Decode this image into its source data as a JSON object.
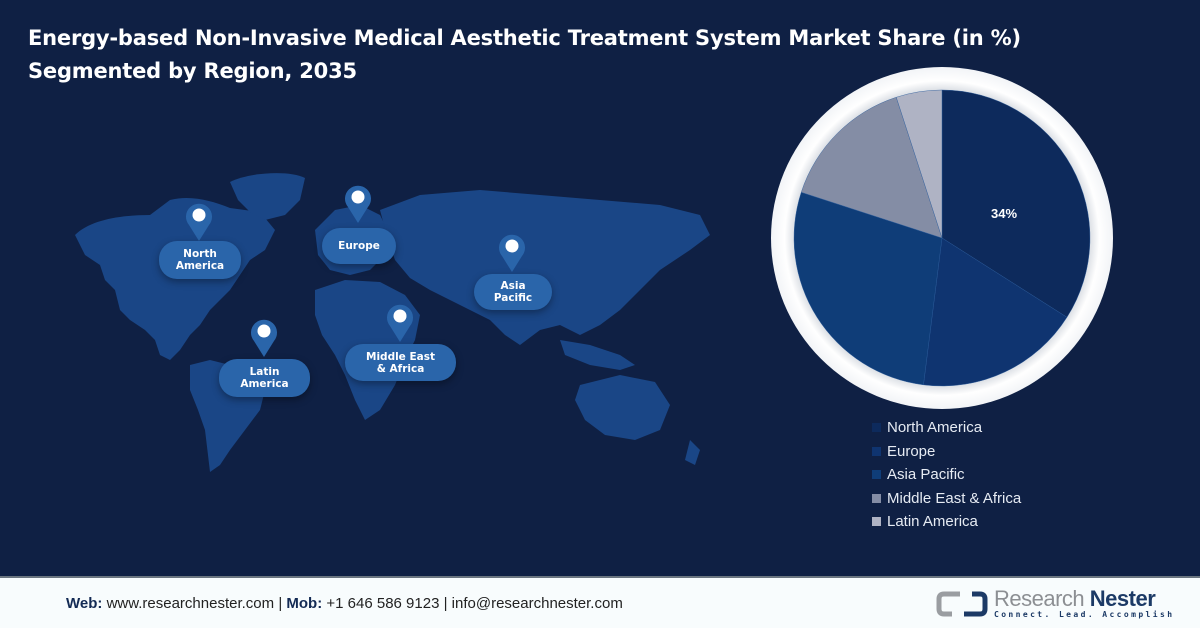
{
  "header": {
    "title_line1": "Energy-based Non-Invasive Medical Aesthetic Treatment System Market Share (in %)",
    "title_line2": "Segmented by Region, 2035"
  },
  "map": {
    "regions": [
      {
        "label_l1": "North",
        "label_l2": "America"
      },
      {
        "label_l1": "Europe",
        "label_l2": ""
      },
      {
        "label_l1": "Asia",
        "label_l2": "Pacific"
      },
      {
        "label_l1": "Latin",
        "label_l2": "America"
      },
      {
        "label_l1": "Middle East",
        "label_l2": "& Africa"
      }
    ],
    "pin_icon": "map-pin-icon"
  },
  "chart_data": {
    "type": "pie",
    "title": "Energy-based Non-Invasive Medical Aesthetic Treatment System Market Share (in %) Segmented by Region, 2035",
    "categories": [
      "North America",
      "Europe",
      "Asia Pacific",
      "Middle East & Africa",
      "Latin America"
    ],
    "values": [
      34,
      18,
      28,
      15,
      5
    ],
    "colors": [
      "#0d2a5c",
      "#0f3470",
      "#0f3d78",
      "#848da5",
      "#afb3c4"
    ],
    "data_labels": [
      "34%",
      "",
      "",
      "",
      ""
    ],
    "legend_position": "bottom-right",
    "start_angle": "12 o'clock, clockwise"
  },
  "legend": {
    "items": [
      {
        "label": "North America",
        "color": "#0d2a5c"
      },
      {
        "label": "Europe",
        "color": "#0f3470"
      },
      {
        "label": "Asia Pacific",
        "color": "#0f3d78"
      },
      {
        "label": "Middle East & Africa",
        "color": "#848da5"
      },
      {
        "label": "Latin America",
        "color": "#afb3c4"
      }
    ]
  },
  "footer": {
    "web_label": "Web:",
    "web_value": "www.researchnester.com",
    "sep1": "|",
    "mob_label": "Mob:",
    "mob_value": "+1 646 586 9123",
    "sep2": "|",
    "email": "info@researchnester.com",
    "logo_word1": "Research",
    "logo_word2": "Nester",
    "logo_tagline": "Connect. Lead. Accomplish"
  },
  "colors": {
    "background": "#0f2044",
    "map_land": "#1b4a8c",
    "badge": "#2a65aa",
    "footer_bg": "#f8fcfd"
  }
}
